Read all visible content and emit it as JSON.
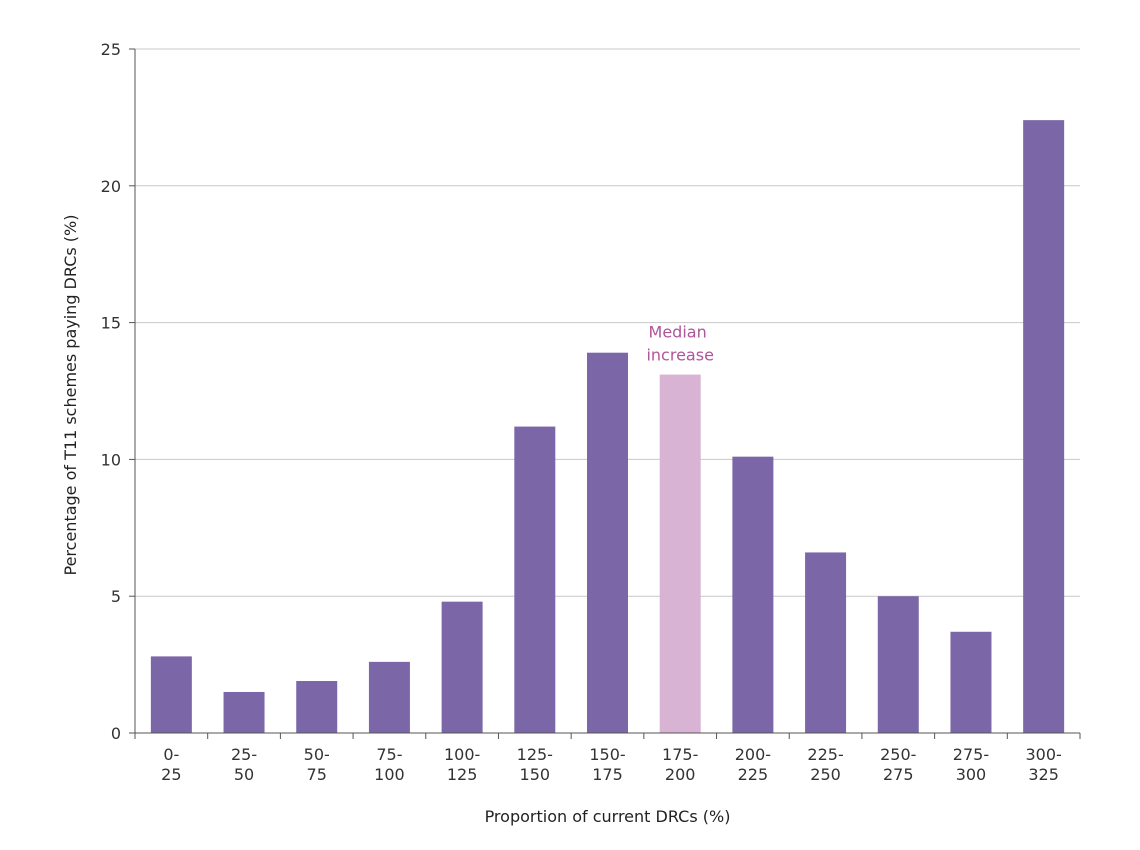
{
  "chart_data": {
    "type": "bar",
    "categories": [
      [
        "0-",
        "25"
      ],
      [
        "25-",
        "50"
      ],
      [
        "50-",
        "75"
      ],
      [
        "75-",
        "100"
      ],
      [
        "100-",
        "125"
      ],
      [
        "125-",
        "150"
      ],
      [
        "150-",
        "175"
      ],
      [
        "175-",
        "200"
      ],
      [
        "200-",
        "225"
      ],
      [
        "225-",
        "250"
      ],
      [
        "250-",
        "275"
      ],
      [
        "275-",
        "300"
      ],
      [
        "300-",
        "325"
      ]
    ],
    "values": [
      2.8,
      1.5,
      1.9,
      2.6,
      4.8,
      11.2,
      13.9,
      13.1,
      10.1,
      6.6,
      5.0,
      3.7,
      22.4
    ],
    "highlight_index": 7,
    "xlabel": "Proportion of current DRCs (%)",
    "ylabel": "Percentage of T11 schemes paying DRCs (%)",
    "ylim": [
      0,
      25
    ],
    "yticks": [
      0,
      5,
      10,
      15,
      20,
      25
    ],
    "grid": true,
    "annotation": {
      "lines": [
        "Median",
        "increase"
      ],
      "target_index": 7
    },
    "colors": {
      "bar": "#7b67a8",
      "highlight": "#d9b3d3",
      "annotation": "#b0559a"
    }
  }
}
